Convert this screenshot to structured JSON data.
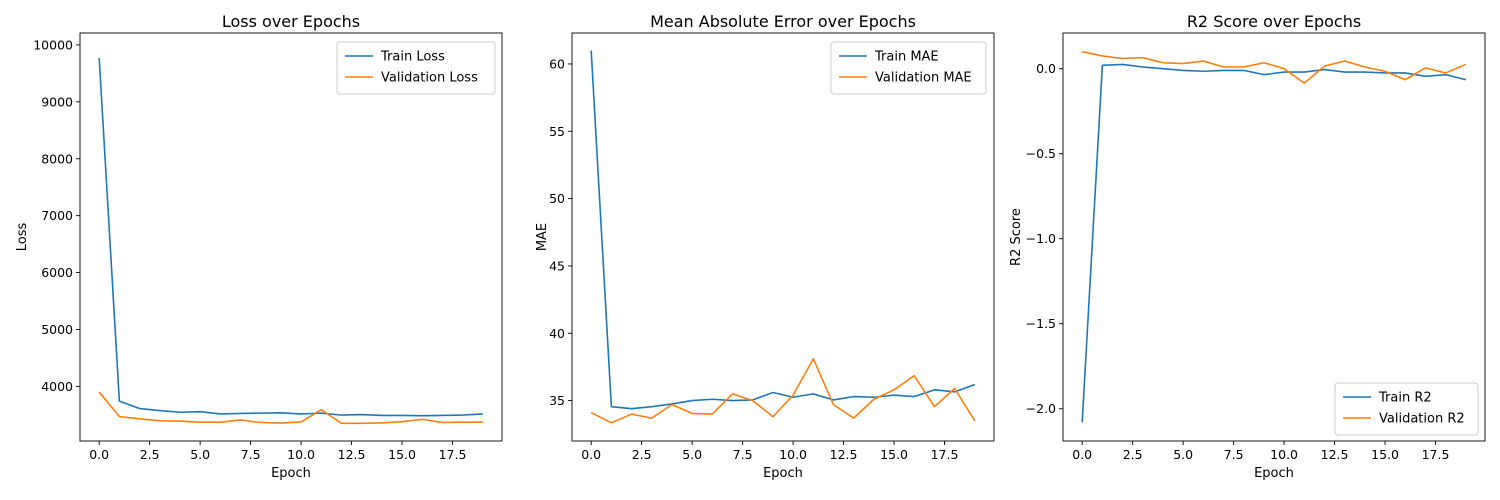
{
  "chart_data": [
    {
      "type": "line",
      "title": "Loss over Epochs",
      "xlabel": "Epoch",
      "ylabel": "Loss",
      "xlim": [
        -0.95,
        19.95
      ],
      "ylim": [
        3040,
        10210
      ],
      "xticks": [
        0,
        2.5,
        5,
        7.5,
        10,
        12.5,
        15,
        17.5
      ],
      "xtick_labels": [
        "0.0",
        "2.5",
        "5.0",
        "7.5",
        "10.0",
        "12.5",
        "15.0",
        "17.5"
      ],
      "yticks": [
        4000,
        5000,
        6000,
        7000,
        8000,
        9000,
        10000
      ],
      "ytick_labels": [
        "4000",
        "5000",
        "6000",
        "7000",
        "8000",
        "9000",
        "10000"
      ],
      "legend": "upper right",
      "x": [
        0,
        1,
        2,
        3,
        4,
        5,
        6,
        7,
        8,
        9,
        10,
        11,
        12,
        13,
        14,
        15,
        16,
        17,
        18,
        19
      ],
      "series": [
        {
          "name": "Train Loss",
          "color": "#1f77b4",
          "values": [
            9770,
            3740,
            3610,
            3575,
            3545,
            3555,
            3515,
            3525,
            3530,
            3535,
            3515,
            3530,
            3495,
            3505,
            3490,
            3490,
            3485,
            3490,
            3495,
            3515
          ]
        },
        {
          "name": "Validation Loss",
          "color": "#ff7f0e",
          "values": [
            3900,
            3470,
            3430,
            3395,
            3390,
            3370,
            3370,
            3410,
            3365,
            3355,
            3375,
            3590,
            3350,
            3350,
            3360,
            3380,
            3420,
            3365,
            3370,
            3370
          ]
        }
      ]
    },
    {
      "type": "line",
      "title": "Mean Absolute Error over Epochs",
      "xlabel": "Epoch",
      "ylabel": "MAE",
      "xlim": [
        -0.95,
        19.95
      ],
      "ylim": [
        32.0,
        62.3
      ],
      "xticks": [
        0,
        2.5,
        5,
        7.5,
        10,
        12.5,
        15,
        17.5
      ],
      "xtick_labels": [
        "0.0",
        "2.5",
        "5.0",
        "7.5",
        "10.0",
        "12.5",
        "15.0",
        "17.5"
      ],
      "yticks": [
        35,
        40,
        45,
        50,
        55,
        60
      ],
      "ytick_labels": [
        "35",
        "40",
        "45",
        "50",
        "55",
        "60"
      ],
      "legend": "upper right",
      "x": [
        0,
        1,
        2,
        3,
        4,
        5,
        6,
        7,
        8,
        9,
        10,
        11,
        12,
        13,
        14,
        15,
        16,
        17,
        18,
        19
      ],
      "series": [
        {
          "name": "Train MAE",
          "color": "#1f77b4",
          "values": [
            61.0,
            34.55,
            34.4,
            34.55,
            34.75,
            35.0,
            35.1,
            35.0,
            35.05,
            35.6,
            35.25,
            35.5,
            35.05,
            35.3,
            35.25,
            35.4,
            35.3,
            35.8,
            35.65,
            36.2
          ]
        },
        {
          "name": "Validation MAE",
          "color": "#ff7f0e",
          "values": [
            34.1,
            33.35,
            34.0,
            33.7,
            34.7,
            34.05,
            34.0,
            35.5,
            35.0,
            33.8,
            35.4,
            38.1,
            34.7,
            33.7,
            35.1,
            35.8,
            36.85,
            34.55,
            35.9,
            33.5
          ]
        }
      ]
    },
    {
      "type": "line",
      "title": "R2 Score over Epochs",
      "xlabel": "Epoch",
      "ylabel": "R2 Score",
      "xlim": [
        -0.95,
        19.95
      ],
      "ylim": [
        -2.19,
        0.21
      ],
      "xticks": [
        0,
        2.5,
        5,
        7.5,
        10,
        12.5,
        15,
        17.5
      ],
      "xtick_labels": [
        "0.0",
        "2.5",
        "5.0",
        "7.5",
        "10.0",
        "12.5",
        "15.0",
        "17.5"
      ],
      "yticks": [
        -2.0,
        -1.5,
        -1.0,
        -0.5,
        0.0
      ],
      "ytick_labels": [
        "−2.0",
        "−1.5",
        "−1.0",
        "−0.5",
        "0.0"
      ],
      "legend": "lower right",
      "x": [
        0,
        1,
        2,
        3,
        4,
        5,
        6,
        7,
        8,
        9,
        10,
        11,
        12,
        13,
        14,
        15,
        16,
        17,
        18,
        19
      ],
      "series": [
        {
          "name": "Train R2",
          "color": "#1f77b4",
          "values": [
            -2.08,
            0.02,
            0.025,
            0.01,
            0.0,
            -0.01,
            -0.015,
            -0.01,
            -0.01,
            -0.035,
            -0.02,
            -0.02,
            -0.005,
            -0.02,
            -0.02,
            -0.025,
            -0.025,
            -0.045,
            -0.035,
            -0.065
          ]
        },
        {
          "name": "Validation R2",
          "color": "#ff7f0e",
          "values": [
            0.1,
            0.075,
            0.06,
            0.065,
            0.035,
            0.03,
            0.045,
            0.01,
            0.01,
            0.035,
            0.0,
            -0.085,
            0.015,
            0.045,
            0.01,
            -0.015,
            -0.065,
            0.005,
            -0.025,
            0.025
          ]
        }
      ]
    }
  ]
}
